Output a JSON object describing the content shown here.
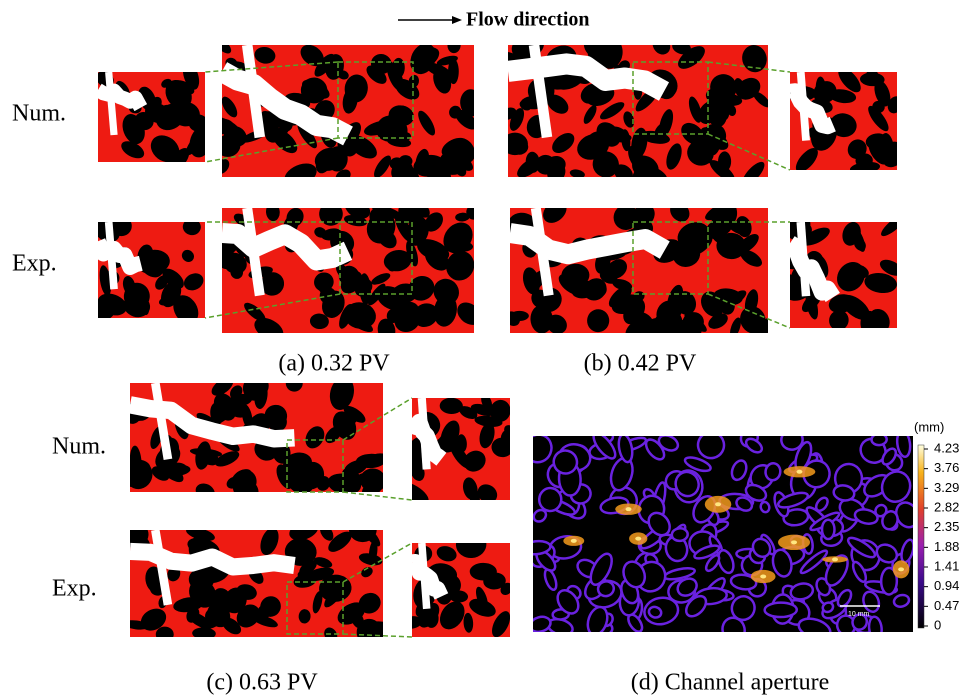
{
  "header": {
    "flow_direction": "Flow direction"
  },
  "rows_ab": [
    "Num.",
    "Exp."
  ],
  "rows_c": [
    "Num.",
    "Exp."
  ],
  "captions": [
    "(a) 0.32 PV",
    "(b) 0.42 PV",
    "(c) 0.63 PV",
    "(d) Channel aperture"
  ],
  "colorbar": {
    "unit": "(mm)",
    "ticks": [
      "4.23",
      "3.76",
      "3.29",
      "2.82",
      "2.35",
      "1.88",
      "1.41",
      "0.94",
      "0.47",
      "0"
    ]
  },
  "scale_bar": "10 mm"
}
